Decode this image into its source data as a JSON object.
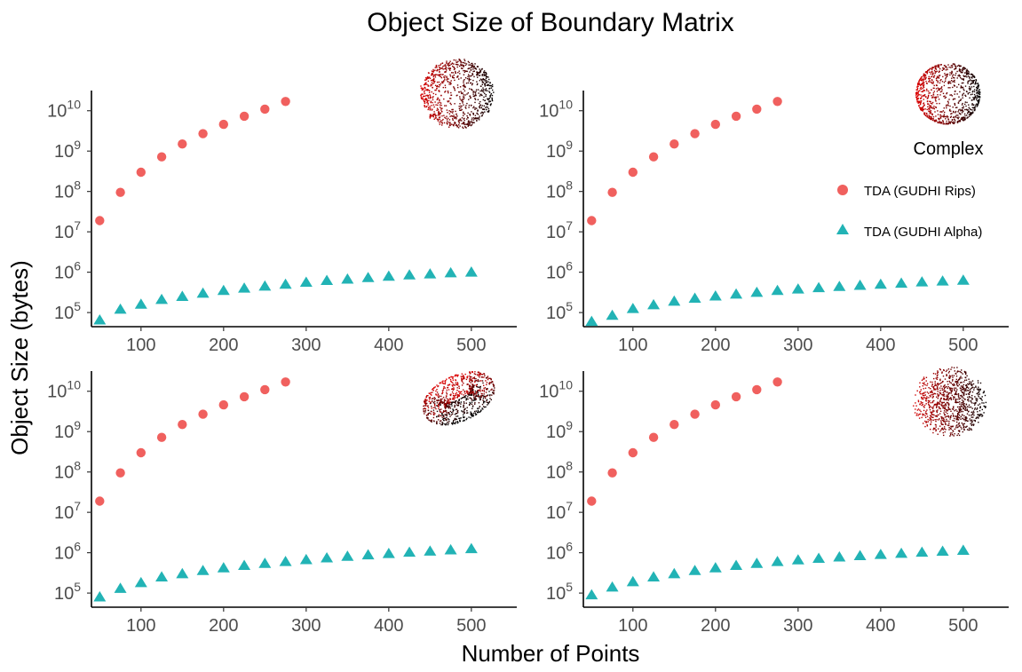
{
  "title": "Object Size of Boundary Matrix",
  "xlabel": "Number of Points",
  "ylabel": "Object Size (bytes)",
  "legend": {
    "title": "Complex",
    "placement": "right",
    "items": [
      {
        "label": "TDA (GUDHI Rips)",
        "shape": "circle",
        "color": "#F0605E"
      },
      {
        "label": "TDA (GUDHI Alpha)",
        "shape": "triangle",
        "color": "#22B3B5"
      }
    ]
  },
  "colors": {
    "rips": "#F0605E",
    "alpha": "#22B3B5",
    "axis": "#000000",
    "tick_text": "#4d4d4d"
  },
  "chart_data": [
    {
      "type": "scatter",
      "panel": "top-left",
      "thumbnail": "sphere-shell-point-cloud",
      "yscale": "log",
      "xlim": [
        40,
        555
      ],
      "ylim_log10": [
        4.65,
        10.5
      ],
      "x_ticks": [
        100,
        200,
        300,
        400,
        500
      ],
      "y_ticks_exp": [
        5,
        6,
        7,
        8,
        9,
        10
      ],
      "series": [
        {
          "name": "TDA (GUDHI Rips)",
          "x": [
            50,
            75,
            100,
            125,
            150,
            175,
            200,
            225,
            250,
            275
          ],
          "y": [
            19000000.0,
            95000000.0,
            300000000.0,
            720000000.0,
            1500000000.0,
            2700000000.0,
            4600000000.0,
            7300000000.0,
            11000000000.0,
            17000000000.0
          ]
        },
        {
          "name": "TDA (GUDHI Alpha)",
          "x": [
            50,
            75,
            100,
            125,
            150,
            175,
            200,
            225,
            250,
            275,
            300,
            325,
            350,
            375,
            400,
            425,
            450,
            475,
            500
          ],
          "y": [
            65000.0,
            120000.0,
            160000.0,
            210000.0,
            250000.0,
            300000.0,
            350000.0,
            400000.0,
            450000.0,
            500000.0,
            560000.0,
            620000.0,
            670000.0,
            730000.0,
            790000.0,
            850000.0,
            900000.0,
            960000.0,
            1000000.0
          ]
        }
      ]
    },
    {
      "type": "scatter",
      "panel": "top-right",
      "thumbnail": "sphere-surface-point-cloud",
      "yscale": "log",
      "xlim": [
        40,
        555
      ],
      "ylim_log10": [
        4.65,
        10.5
      ],
      "x_ticks": [
        100,
        200,
        300,
        400,
        500
      ],
      "y_ticks_exp": [
        5,
        6,
        7,
        8,
        9,
        10
      ],
      "series": [
        {
          "name": "TDA (GUDHI Rips)",
          "x": [
            50,
            75,
            100,
            125,
            150,
            175,
            200,
            225,
            250,
            275
          ],
          "y": [
            19000000.0,
            95000000.0,
            300000000.0,
            720000000.0,
            1500000000.0,
            2700000000.0,
            4600000000.0,
            7300000000.0,
            11000000000.0,
            17000000000.0
          ]
        },
        {
          "name": "TDA (GUDHI Alpha)",
          "x": [
            50,
            75,
            100,
            125,
            150,
            175,
            200,
            225,
            250,
            275,
            300,
            325,
            350,
            375,
            400,
            425,
            450,
            475,
            500
          ],
          "y": [
            60000.0,
            85000.0,
            125000.0,
            155000.0,
            190000.0,
            225000.0,
            255000.0,
            285000.0,
            315000.0,
            350000.0,
            380000.0,
            410000.0,
            440000.0,
            470000.0,
            500000.0,
            530000.0,
            570000.0,
            600000.0,
            630000.0
          ]
        }
      ]
    },
    {
      "type": "scatter",
      "panel": "bottom-left",
      "thumbnail": "torus-point-cloud",
      "yscale": "log",
      "xlim": [
        40,
        555
      ],
      "ylim_log10": [
        4.65,
        10.5
      ],
      "x_ticks": [
        100,
        200,
        300,
        400,
        500
      ],
      "y_ticks_exp": [
        5,
        6,
        7,
        8,
        9,
        10
      ],
      "series": [
        {
          "name": "TDA (GUDHI Rips)",
          "x": [
            50,
            75,
            100,
            125,
            150,
            175,
            200,
            225,
            250,
            275
          ],
          "y": [
            19000000.0,
            95000000.0,
            300000000.0,
            720000000.0,
            1500000000.0,
            2700000000.0,
            4600000000.0,
            7300000000.0,
            11000000000.0,
            17000000000.0
          ]
        },
        {
          "name": "TDA (GUDHI Alpha)",
          "x": [
            50,
            75,
            100,
            125,
            150,
            175,
            200,
            225,
            250,
            275,
            300,
            325,
            350,
            375,
            400,
            425,
            450,
            475,
            500
          ],
          "y": [
            80000.0,
            130000.0,
            180000.0,
            250000.0,
            300000.0,
            360000.0,
            420000.0,
            480000.0,
            540000.0,
            600000.0,
            670000.0,
            740000.0,
            810000.0,
            880000.0,
            950000.0,
            1020000.0,
            1090000.0,
            1170000.0,
            1250000.0
          ]
        }
      ]
    },
    {
      "type": "scatter",
      "panel": "bottom-right",
      "thumbnail": "solid-ball-point-cloud",
      "yscale": "log",
      "xlim": [
        40,
        555
      ],
      "ylim_log10": [
        4.65,
        10.5
      ],
      "x_ticks": [
        100,
        200,
        300,
        400,
        500
      ],
      "y_ticks_exp": [
        5,
        6,
        7,
        8,
        9,
        10
      ],
      "series": [
        {
          "name": "TDA (GUDHI Rips)",
          "x": [
            50,
            75,
            100,
            125,
            150,
            175,
            200,
            225,
            250,
            275
          ],
          "y": [
            19000000.0,
            95000000.0,
            300000000.0,
            720000000.0,
            1500000000.0,
            2700000000.0,
            4600000000.0,
            7300000000.0,
            11000000000.0,
            17000000000.0
          ]
        },
        {
          "name": "TDA (GUDHI Alpha)",
          "x": [
            50,
            75,
            100,
            125,
            150,
            175,
            200,
            225,
            250,
            275,
            300,
            325,
            350,
            375,
            400,
            425,
            450,
            475,
            500
          ],
          "y": [
            90000.0,
            140000.0,
            190000.0,
            250000.0,
            300000.0,
            360000.0,
            420000.0,
            480000.0,
            540000.0,
            600000.0,
            660000.0,
            720000.0,
            780000.0,
            840000.0,
            900000.0,
            960000.0,
            1020000.0,
            1080000.0,
            1140000.0
          ]
        }
      ]
    }
  ]
}
